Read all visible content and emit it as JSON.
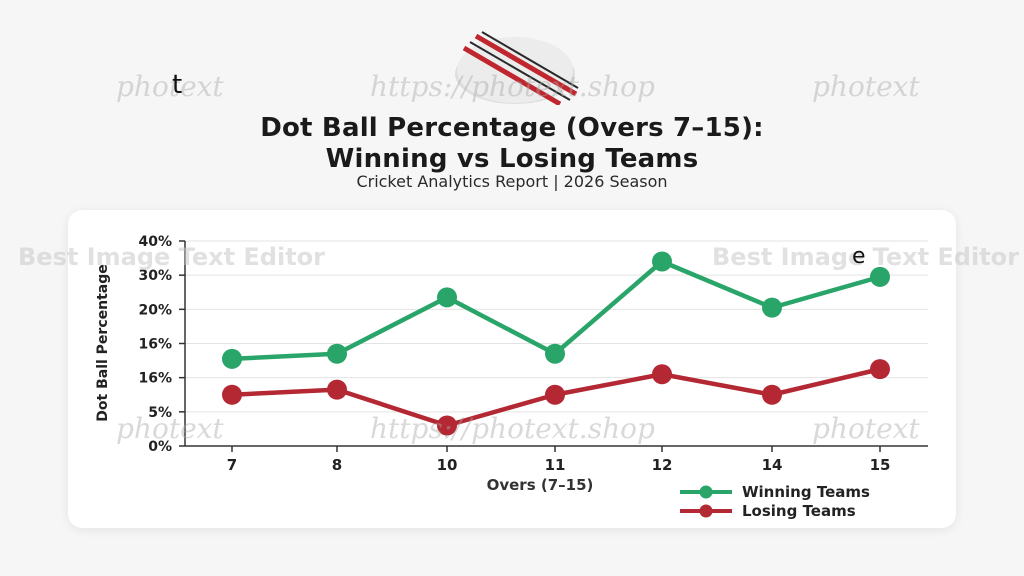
{
  "title_line1": "Dot Ball Percentage (Overs 7–15):",
  "title_line2": "Winning vs Losing Teams",
  "subtitle": "Cricket Analytics Report | 2026  Season",
  "watermarks": {
    "photext": "photext",
    "url": "https://photext.shop",
    "editor": "Best Image Text Editor"
  },
  "stray_letters": {
    "t": "t",
    "e": "e"
  },
  "colors": {
    "winning": "#2aa56a",
    "losing": "#b32833",
    "axis": "#333333",
    "grid": "#e3e3e3"
  },
  "chart_data": {
    "type": "line",
    "title": "Dot Ball Percentage (Overs 7–15): Winning vs Losing Teams",
    "xlabel": "Overs (7–15)",
    "ylabel": "Dot Ball Percentage",
    "categories": [
      "7",
      "8",
      "10",
      "11",
      "12",
      "14",
      "15"
    ],
    "y_tick_labels": [
      "0%",
      "5%",
      "16%",
      "16%",
      "20%",
      "30%",
      "40%"
    ],
    "ylim": [
      0,
      40
    ],
    "grid": true,
    "legend_position": "bottom-right",
    "series": [
      {
        "name": "Winning Teams",
        "values": [
          17,
          18,
          29,
          18,
          36,
          27,
          33
        ]
      },
      {
        "name": "Losing Teams",
        "values": [
          10,
          11,
          4,
          10,
          14,
          10,
          15
        ]
      }
    ]
  }
}
